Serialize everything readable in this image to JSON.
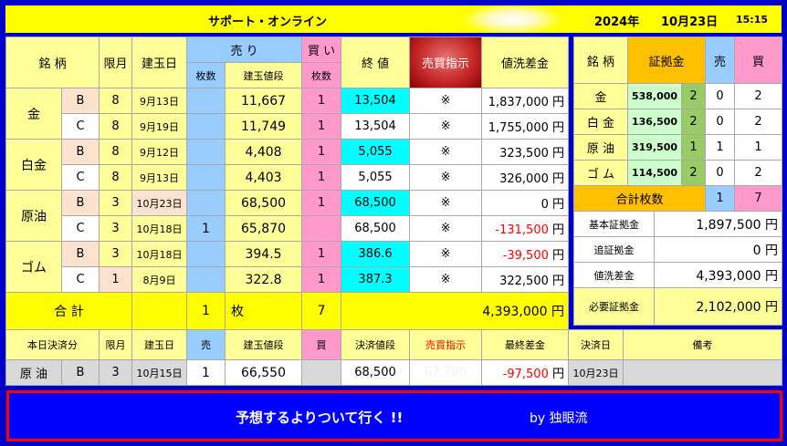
{
  "header": {
    "title": "サポート・オンライン",
    "year": "2024年",
    "date": "10月23日",
    "time": "15:15"
  },
  "main": {
    "h_meigara": "銘 柄",
    "h_gengetsu": "限月",
    "h_tatebi": "建玉日",
    "h_uri": "売 り",
    "h_kai": "買 い",
    "h_owarine": "終 値",
    "h_signal": "売買指示",
    "h_nearai": "値洗差金",
    "h_maisu1": "枚数",
    "h_tatene": "建玉値段",
    "h_maisu2": "枚数",
    "groups": [
      {
        "name": "金",
        "rows": [
          {
            "grade": "B",
            "month": "8",
            "date": "9月13日",
            "sell": "",
            "price": "11,667",
            "buy": "1",
            "close": "13,504",
            "signal": "※",
            "diff": "1,837,000",
            "unit": "円"
          },
          {
            "grade": "C",
            "month": "8",
            "date": "9月19日",
            "sell": "",
            "price": "11,749",
            "buy": "1",
            "close": "13,504",
            "signal": "※",
            "diff": "1,755,000",
            "unit": "円"
          }
        ]
      },
      {
        "name": "白金",
        "rows": [
          {
            "grade": "B",
            "month": "8",
            "date": "9月12日",
            "sell": "",
            "price": "4,408",
            "buy": "1",
            "close": "5,055",
            "signal": "※",
            "diff": "323,500",
            "unit": "円"
          },
          {
            "grade": "C",
            "month": "8",
            "date": "9月13日",
            "sell": "",
            "price": "4,403",
            "buy": "1",
            "close": "5,055",
            "signal": "※",
            "diff": "326,000",
            "unit": "円"
          }
        ]
      },
      {
        "name": "原油",
        "rows": [
          {
            "grade": "B",
            "month": "3",
            "date": "10月23日",
            "sell": "",
            "price": "68,500",
            "buy": "1",
            "close": "68,500",
            "signal": "※",
            "diff": "0",
            "unit": "円"
          },
          {
            "grade": "C",
            "month": "3",
            "date": "10月18日",
            "sell": "1",
            "price": "65,870",
            "buy": "",
            "close": "68,500",
            "signal": "※",
            "diff": "-131,500",
            "unit": "円"
          }
        ]
      },
      {
        "name": "ゴム",
        "rows": [
          {
            "grade": "B",
            "month": "3",
            "date": "10月18日",
            "sell": "",
            "price": "394.5",
            "buy": "1",
            "close": "386.6",
            "signal": "※",
            "diff": "-39,500",
            "unit": "円"
          },
          {
            "grade": "C",
            "month": "1",
            "date": "8月9日",
            "sell": "",
            "price": "322.8",
            "buy": "1",
            "close": "387.3",
            "signal": "※",
            "diff": "322,500",
            "unit": "円"
          }
        ]
      }
    ],
    "total": {
      "label": "合 計",
      "sell": "1",
      "unit_mai": "枚",
      "buy": "7",
      "diff": "4,393,000",
      "unit": "円"
    }
  },
  "side": {
    "h_meigara": "銘 柄",
    "h_shokokin": "証拠金",
    "h_uri": "売",
    "h_kai": "買",
    "rows": [
      {
        "name": "金",
        "margin": "538,000",
        "count": "2",
        "sell": "0",
        "buy": "2"
      },
      {
        "name": "白 金",
        "margin": "136,500",
        "count": "2",
        "sell": "0",
        "buy": "2"
      },
      {
        "name": "原 油",
        "margin": "319,500",
        "count": "1",
        "sell": "1",
        "buy": "1"
      },
      {
        "name": "ゴ ム",
        "margin": "114,500",
        "count": "2",
        "sell": "0",
        "buy": "2"
      }
    ],
    "total_label": "合計枚数",
    "total_sell": "1",
    "total_buy": "7",
    "summary": [
      {
        "label": "基本証拠金",
        "value": "1,897,500",
        "unit": "円"
      },
      {
        "label": "追証拠金",
        "value": "0",
        "unit": "円"
      },
      {
        "label": "値洗差金",
        "value": "4,393,000",
        "unit": "円"
      },
      {
        "label": "必要証拠金",
        "value": "2,102,000",
        "unit": "円"
      }
    ]
  },
  "settle": {
    "h": [
      "本日決済分",
      "限月",
      "建玉日",
      "売",
      "建玉値段",
      "買",
      "決済値段",
      "売買指示",
      "最終差金",
      "決済日",
      "備考"
    ],
    "row": {
      "name": "原 油",
      "grade": "B",
      "month": "3",
      "date": "10月15日",
      "sell": "1",
      "price": "66,550",
      "buy": "",
      "settle_price": "68,500",
      "signal": "67,780",
      "final": "-97,500",
      "unit": "円",
      "settle_date": "10月23日",
      "note": ""
    }
  },
  "banner": {
    "main": "予想するよりついて行く !!",
    "by": "by 独眼流"
  }
}
